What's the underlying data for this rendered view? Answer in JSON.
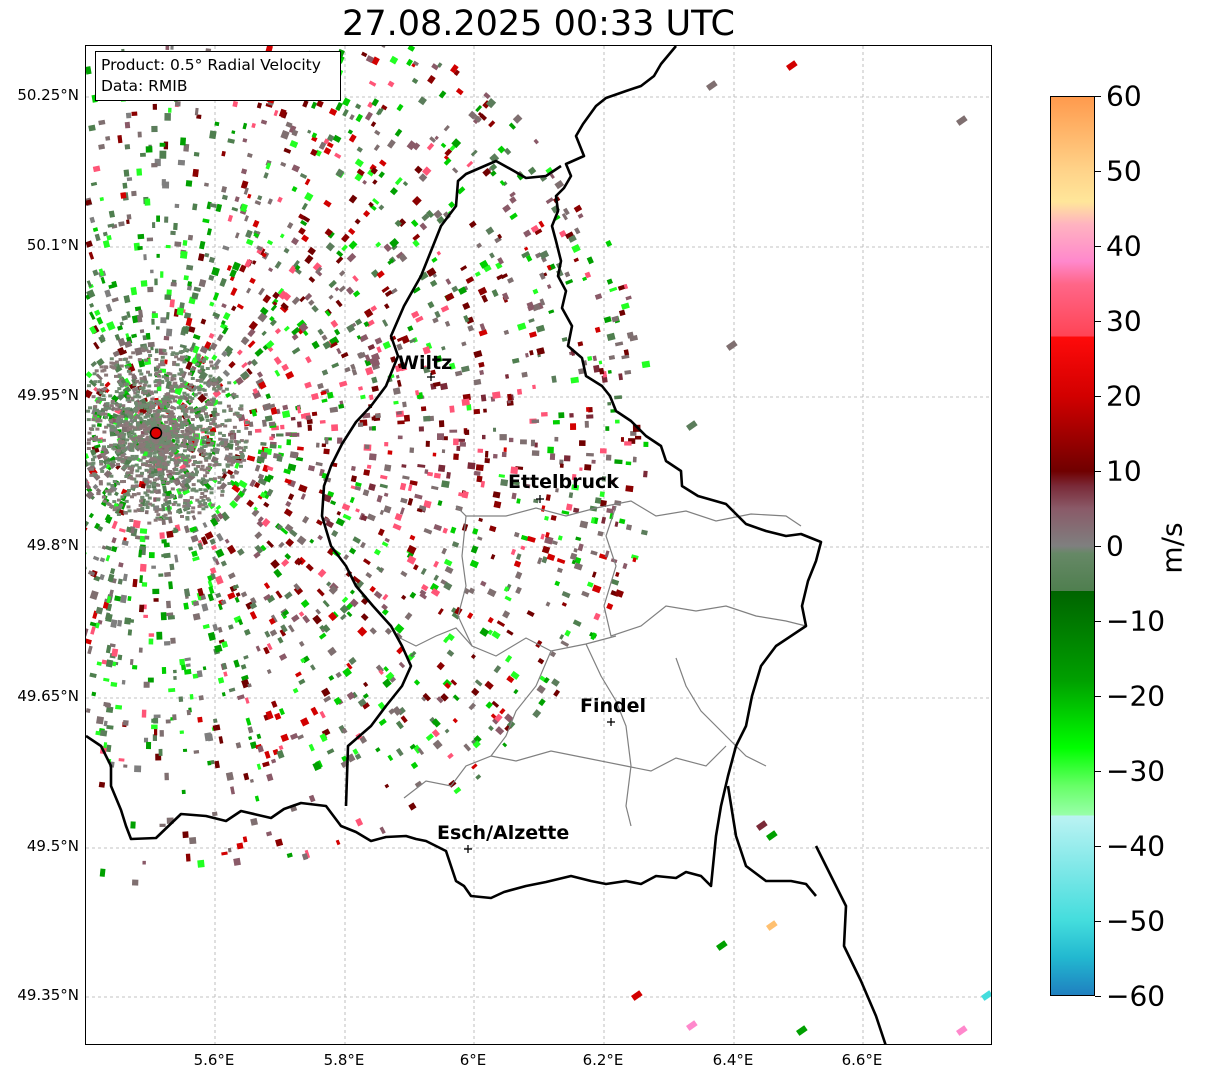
{
  "title": "27.08.2025 00:33 UTC",
  "info_box": {
    "product": "Product: 0.5° Radial Velocity",
    "data": "Data: RMIB"
  },
  "map": {
    "lat_ticks": [
      "50.25°N",
      "50.1°N",
      "49.95°N",
      "49.8°N",
      "49.65°N",
      "49.5°N",
      "49.35°N"
    ],
    "lon_ticks": [
      "5.6°E",
      "5.8°E",
      "6°E",
      "6.2°E",
      "6.4°E",
      "6.6°E"
    ],
    "cities": [
      {
        "name": "Wiltz"
      },
      {
        "name": "Ettelbruck"
      },
      {
        "name": "Findel"
      },
      {
        "name": "Esch/Alzette"
      }
    ],
    "radar_site_color": "#e00000",
    "border_color": "#000000",
    "canton_color": "#808080"
  },
  "colorbar": {
    "unit": "m/s",
    "min": -60,
    "max": 60,
    "ticks": [
      "60",
      "50",
      "40",
      "30",
      "20",
      "10",
      "0",
      "−10",
      "−20",
      "−30",
      "−40",
      "−50",
      "−60"
    ],
    "stops": [
      {
        "v": 60,
        "color": "#ff9a4d"
      },
      {
        "v": 50,
        "color": "#ffd48a"
      },
      {
        "v": 46,
        "color": "#ffe69a"
      },
      {
        "v": 43,
        "color": "#ffb3c0"
      },
      {
        "v": 38,
        "color": "#ff88cc"
      },
      {
        "v": 35,
        "color": "#ff6688"
      },
      {
        "v": 28,
        "color": "#ff4455"
      },
      {
        "v": 28,
        "color": "#ff0a0a"
      },
      {
        "v": 20,
        "color": "#d20000"
      },
      {
        "v": 10,
        "color": "#700000"
      },
      {
        "v": 8,
        "color": "#7a2a38"
      },
      {
        "v": 5,
        "color": "#8a5a68"
      },
      {
        "v": 0,
        "color": "#7f7f7f"
      },
      {
        "v": -1,
        "color": "#668866"
      },
      {
        "v": -6,
        "color": "#4f7f4f"
      },
      {
        "v": -6,
        "color": "#006400"
      },
      {
        "v": -18,
        "color": "#00a000"
      },
      {
        "v": -27,
        "color": "#00ff00"
      },
      {
        "v": -32,
        "color": "#66ff66"
      },
      {
        "v": -36,
        "color": "#99ffaa"
      },
      {
        "v": -36,
        "color": "#bbf3f3"
      },
      {
        "v": -50,
        "color": "#44dddd"
      },
      {
        "v": -55,
        "color": "#22b8d0"
      },
      {
        "v": -60,
        "color": "#1f80c0"
      }
    ]
  }
}
